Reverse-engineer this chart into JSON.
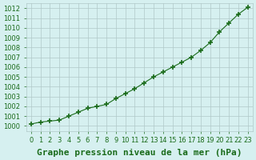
{
  "x": [
    0,
    1,
    2,
    3,
    4,
    5,
    6,
    7,
    8,
    9,
    10,
    11,
    12,
    13,
    14,
    15,
    16,
    17,
    18,
    19,
    20,
    21,
    22,
    23
  ],
  "y": [
    1000.2,
    1000.4,
    1000.5,
    1000.6,
    1001.0,
    1001.4,
    1001.8,
    1002.0,
    1002.2,
    1002.8,
    1003.3,
    1003.8,
    1004.4,
    1005.0,
    1005.5,
    1006.0,
    1006.5,
    1007.0,
    1007.7,
    1008.5,
    1009.6,
    1010.5,
    1011.4,
    1012.1
  ],
  "line_color": "#1a6b1a",
  "marker": "+",
  "marker_size": 5,
  "bg_color": "#d6f0f0",
  "grid_color": "#b0c8c8",
  "xlabel": "Graphe pression niveau de la mer (hPa)",
  "xlabel_fontsize": 8,
  "tick_color": "#1a6b1a",
  "tick_fontsize": 6,
  "ylim": [
    999.5,
    1012.5
  ],
  "xlim": [
    -0.5,
    23.5
  ],
  "yticks": [
    1000,
    1001,
    1002,
    1003,
    1004,
    1005,
    1006,
    1007,
    1008,
    1009,
    1010,
    1011,
    1012
  ],
  "xticks": [
    0,
    1,
    2,
    3,
    4,
    5,
    6,
    7,
    8,
    9,
    10,
    11,
    12,
    13,
    14,
    15,
    16,
    17,
    18,
    19,
    20,
    21,
    22,
    23
  ]
}
